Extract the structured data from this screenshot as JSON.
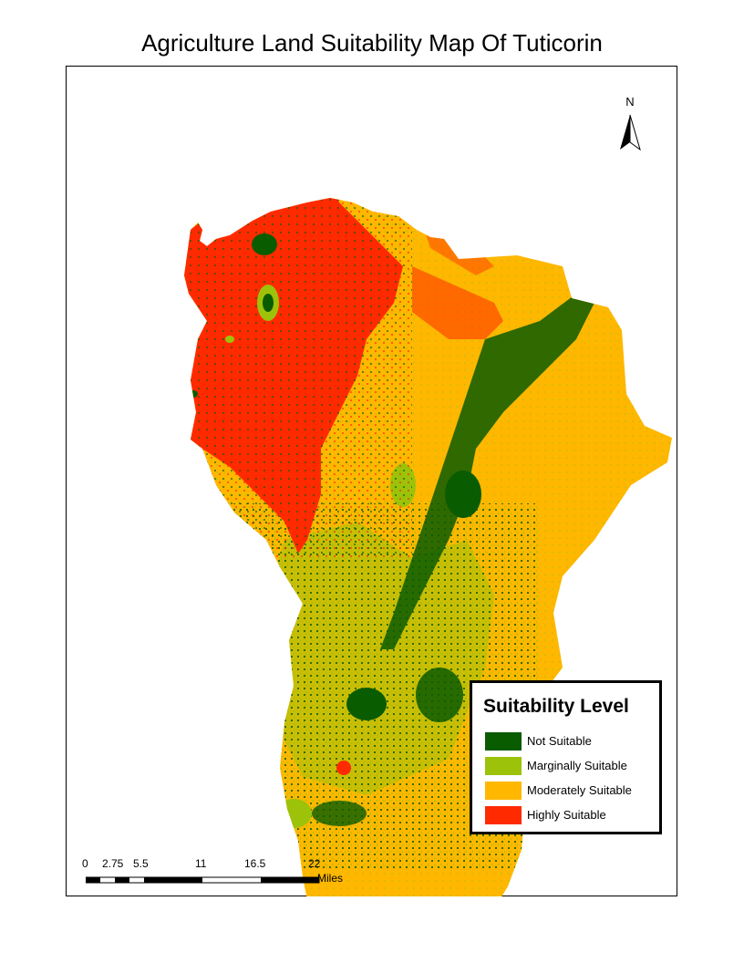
{
  "title": "Agriculture Land Suitability Map Of Tuticorin",
  "north_arrow": {
    "label": "N"
  },
  "legend": {
    "title": "Suitability Level",
    "items": [
      {
        "label": "Not Suitable",
        "color": "#0a5c00"
      },
      {
        "label": "Marginally Suitable",
        "color": "#9cc20a"
      },
      {
        "label": "Moderately Suitable",
        "color": "#ffb700"
      },
      {
        "label": "Highly Suitable",
        "color": "#ff2a00"
      }
    ]
  },
  "scale_bar": {
    "tick_labels": [
      "0",
      "2.75",
      "5.5",
      "11",
      "16.5",
      "22"
    ],
    "units": "Miles"
  }
}
